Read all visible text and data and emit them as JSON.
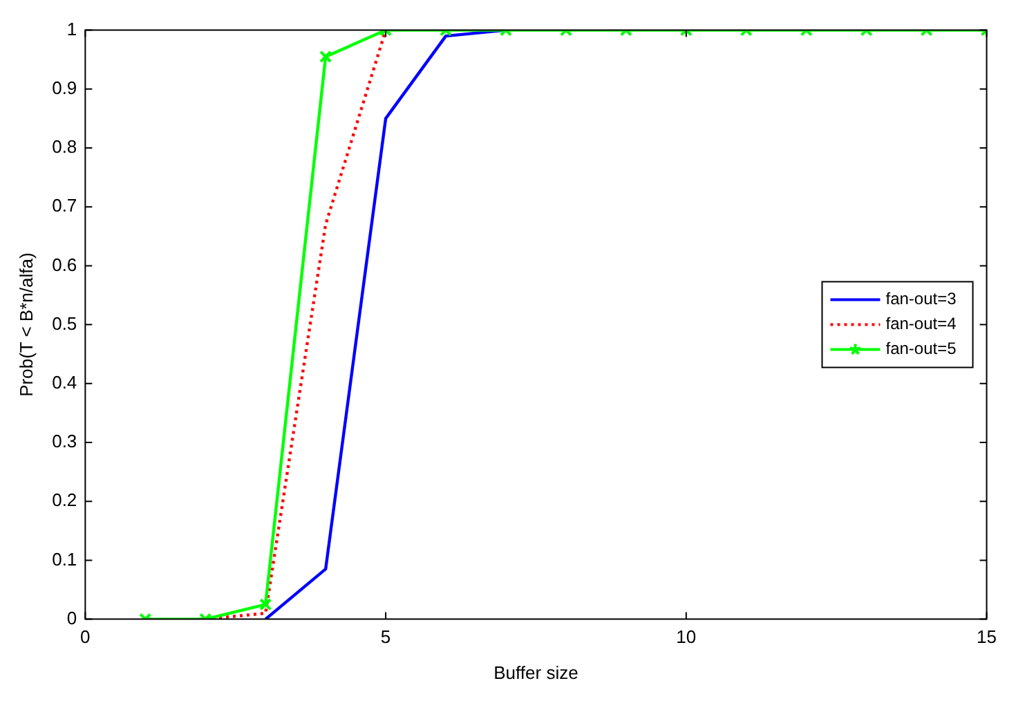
{
  "chart_data": {
    "type": "line",
    "xlabel": "Buffer size",
    "ylabel": "Prob(T < B*n/alfa)",
    "x": [
      1,
      2,
      3,
      4,
      5,
      6,
      7,
      8,
      9,
      10,
      11,
      12,
      13,
      14,
      15
    ],
    "series": [
      {
        "name": "fan-out=3",
        "color": "#0000ff",
        "line_style": "solid",
        "marker": "none",
        "values": [
          null,
          null,
          0,
          0.085,
          0.85,
          0.99,
          1,
          null,
          null,
          null,
          null,
          null,
          null,
          null,
          null
        ]
      },
      {
        "name": "fan-out=4",
        "color": "#ff0000",
        "line_style": "dotted",
        "marker": "none",
        "values": [
          null,
          0,
          0.01,
          0.67,
          1,
          null,
          null,
          null,
          null,
          null,
          null,
          null,
          null,
          null,
          null
        ]
      },
      {
        "name": "fan-out=5",
        "color": "#00ff00",
        "line_style": "solid",
        "marker": "cross",
        "values": [
          0,
          0,
          0.025,
          0.955,
          1,
          1,
          1,
          1,
          1,
          1,
          1,
          1,
          1,
          1,
          1
        ]
      }
    ],
    "xlim": [
      0,
      15
    ],
    "xticks": [
      0,
      5,
      10,
      15
    ],
    "ylim": [
      0,
      1
    ],
    "yticks": [
      0,
      0.1,
      0.2,
      0.3,
      0.4,
      0.5,
      0.6,
      0.7,
      0.8,
      0.9,
      1
    ],
    "grid": false,
    "legend": "right"
  }
}
